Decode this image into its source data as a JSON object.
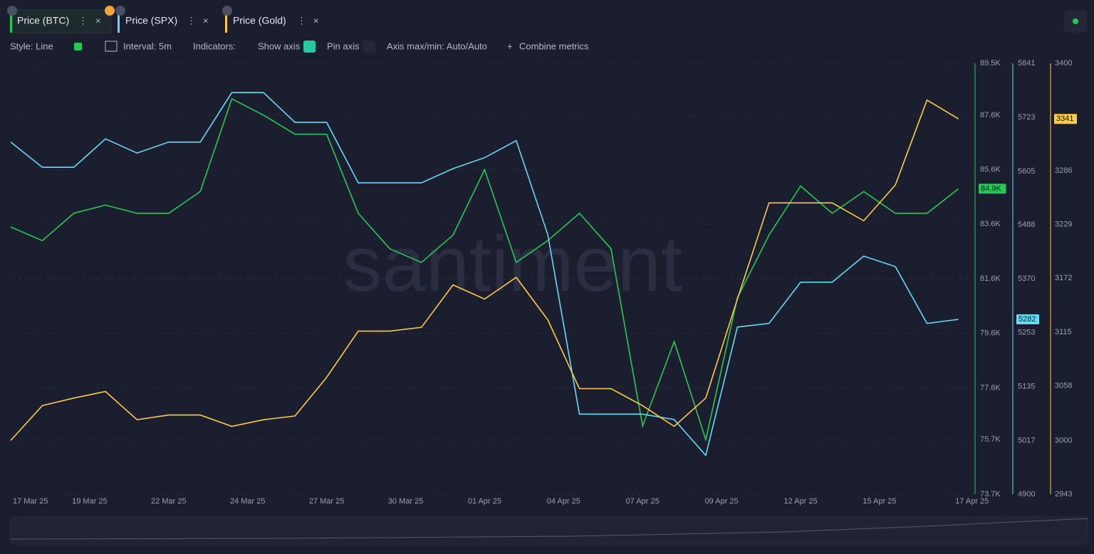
{
  "toolbar": {
    "style": "Style: Line",
    "interval": "Interval: 5m",
    "indicators": "Indicators:",
    "show_axis": "Show axis",
    "pin_axis": "Pin axis",
    "axis_minmax": "Axis max/min: Auto/Auto",
    "combine": "Combine metrics"
  },
  "chart_data": {
    "type": "line",
    "watermark": "santiment",
    "x": [
      0,
      4,
      8,
      12,
      16,
      20,
      24,
      28,
      32,
      36,
      40,
      44,
      48,
      52,
      56,
      60,
      64,
      68,
      72,
      76,
      80,
      84,
      88,
      92,
      96,
      100,
      104,
      108,
      112,
      116,
      120
    ],
    "xlim": [
      0,
      122
    ],
    "xticks": [
      {
        "value": 2.5,
        "label": "17 Mar 25"
      },
      {
        "value": 10,
        "label": "19 Mar 25"
      },
      {
        "value": 20,
        "label": "22 Mar 25"
      },
      {
        "value": 30,
        "label": "24 Mar 25"
      },
      {
        "value": 40,
        "label": "27 Mar 25"
      },
      {
        "value": 50,
        "label": "30 Mar 25"
      },
      {
        "value": 60,
        "label": "01 Apr 25"
      },
      {
        "value": 70,
        "label": "04 Apr 25"
      },
      {
        "value": 80,
        "label": "07 Apr 25"
      },
      {
        "value": 90,
        "label": "09 Apr 25"
      },
      {
        "value": 100,
        "label": "12 Apr 25"
      },
      {
        "value": 110,
        "label": "15 Apr 25"
      },
      {
        "value": 121.7,
        "label": "17 Apr 25"
      }
    ],
    "ylim": [
      73700,
      89500
    ],
    "yticks": [
      {
        "value": 73700,
        "label": "73.7K"
      },
      {
        "value": 75700,
        "label": "75.7K"
      },
      {
        "value": 77600,
        "label": "77.6K"
      },
      {
        "value": 79600,
        "label": "79.6K"
      },
      {
        "value": 81600,
        "label": "81.6K"
      },
      {
        "value": 83600,
        "label": "83.6K"
      },
      {
        "value": 85600,
        "label": "85.6K"
      },
      {
        "value": 87600,
        "label": "87.6K"
      },
      {
        "value": 89500,
        "label": "89.5K"
      }
    ],
    "y2lim": [
      4900,
      5841
    ],
    "y2ticks": [
      4900,
      5017,
      5135,
      5253,
      5370,
      5488,
      5605,
      5723,
      5841
    ],
    "y3lim": [
      2943,
      3400
    ],
    "y3ticks": [
      2943,
      3000,
      3058,
      3115,
      3172,
      3229,
      3286,
      3400
    ],
    "grid": true,
    "series": [
      {
        "name": "Price (BTC)",
        "color": "#26c953",
        "axis": "y",
        "current_label": "84.9K",
        "values": [
          83500,
          83000,
          84000,
          84300,
          84000,
          84000,
          84800,
          88200,
          87600,
          86900,
          86900,
          84000,
          82700,
          82200,
          83200,
          85600,
          82200,
          83000,
          84000,
          82700,
          76200,
          79300,
          75700,
          80900,
          83200,
          85000,
          84000,
          84800,
          84000,
          84000,
          84900
        ]
      },
      {
        "name": "Price (SPX)",
        "color": "#68dbf4",
        "axis": "y2",
        "current_label": "5282",
        "values": [
          5669,
          5614,
          5614,
          5676,
          5645,
          5669,
          5669,
          5777,
          5777,
          5712,
          5712,
          5580,
          5580,
          5580,
          5611,
          5635,
          5672,
          5467,
          5075,
          5075,
          5075,
          5063,
          4985,
          5265,
          5273,
          5363,
          5363,
          5420,
          5397,
          5273,
          5282
        ]
      },
      {
        "name": "Price (Gold)",
        "color": "#ffcb47",
        "axis": "y3",
        "current_label": "3341",
        "values": [
          3000,
          3037,
          3045,
          3052,
          3022,
          3027,
          3027,
          3015,
          3022,
          3026,
          3067,
          3116,
          3116,
          3120,
          3165,
          3150,
          3173,
          3128,
          3055,
          3055,
          3037,
          3015,
          3045,
          3150,
          3252,
          3252,
          3252,
          3233,
          3271,
          3361,
          3341
        ]
      }
    ]
  }
}
